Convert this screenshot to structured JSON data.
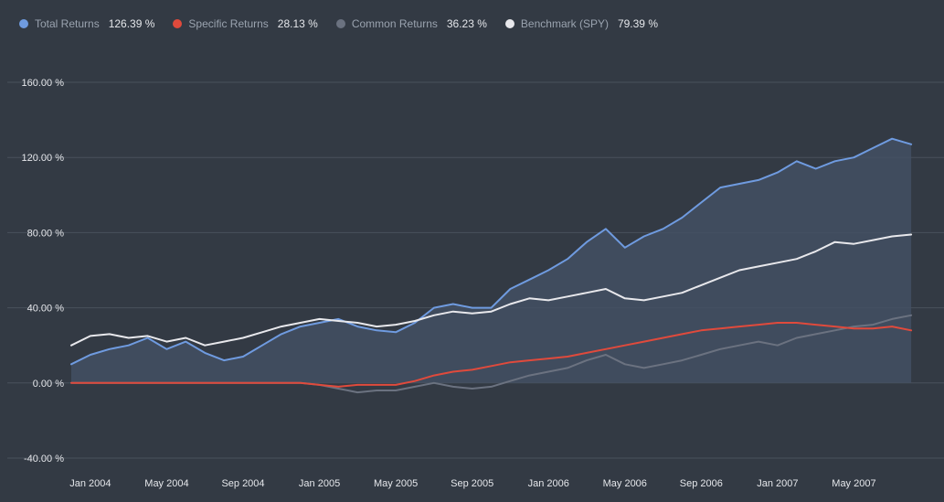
{
  "legend": [
    {
      "name": "Total Returns",
      "value": "126.39 %",
      "color": "#6f9be0"
    },
    {
      "name": "Specific Returns",
      "value": "28.13 %",
      "color": "#e04a3c"
    },
    {
      "name": "Common Returns",
      "value": "36.23 %",
      "color": "#6b7280"
    },
    {
      "name": "Benchmark (SPY)",
      "value": "79.39 %",
      "color": "#e8e8ec"
    }
  ],
  "chart_data": {
    "type": "line",
    "title": "",
    "xlabel": "",
    "ylabel": "",
    "ylim": [
      -40,
      160
    ],
    "xlim": [
      "2003-12",
      "2007-09"
    ],
    "grid": "horizontal",
    "legend_position": "top-left",
    "y_ticks": [
      -40,
      0,
      40,
      80,
      120,
      160
    ],
    "y_tick_labels": [
      "-40.00 %",
      "0.00 %",
      "40.00 %",
      "80.00 %",
      "120.00 %",
      "160.00 %"
    ],
    "x_tick_labels": [
      "Jan 2004",
      "May 2004",
      "Sep 2004",
      "Jan 2005",
      "May 2005",
      "Sep 2005",
      "Jan 2006",
      "May 2006",
      "Sep 2006",
      "Jan 2007",
      "May 2007"
    ],
    "x_ticks": [
      "2004-01",
      "2004-05",
      "2004-09",
      "2005-01",
      "2005-05",
      "2005-09",
      "2006-01",
      "2006-05",
      "2006-09",
      "2007-01",
      "2007-05"
    ],
    "series": [
      {
        "name": "Total Returns",
        "color": "#6f9be0",
        "area": true,
        "x": [
          "2003-12",
          "2004-01",
          "2004-02",
          "2004-03",
          "2004-04",
          "2004-05",
          "2004-06",
          "2004-07",
          "2004-08",
          "2004-09",
          "2004-10",
          "2004-11",
          "2004-12",
          "2005-01",
          "2005-02",
          "2005-03",
          "2005-04",
          "2005-05",
          "2005-06",
          "2005-07",
          "2005-08",
          "2005-09",
          "2005-10",
          "2005-11",
          "2005-12",
          "2006-01",
          "2006-02",
          "2006-03",
          "2006-04",
          "2006-05",
          "2006-06",
          "2006-07",
          "2006-08",
          "2006-09",
          "2006-10",
          "2006-11",
          "2006-12",
          "2007-01",
          "2007-02",
          "2007-03",
          "2007-04",
          "2007-05",
          "2007-06",
          "2007-07",
          "2007-08"
        ],
        "values": [
          10,
          15,
          18,
          20,
          24,
          18,
          22,
          16,
          12,
          14,
          20,
          26,
          30,
          32,
          34,
          30,
          28,
          27,
          32,
          40,
          42,
          40,
          40,
          50,
          55,
          60,
          66,
          75,
          82,
          72,
          78,
          82,
          88,
          96,
          104,
          106,
          108,
          112,
          118,
          114,
          118,
          120,
          125,
          130,
          127
        ]
      },
      {
        "name": "Specific Returns",
        "color": "#e04a3c",
        "x": [
          "2003-12",
          "2004-01",
          "2004-02",
          "2004-03",
          "2004-04",
          "2004-05",
          "2004-06",
          "2004-07",
          "2004-08",
          "2004-09",
          "2004-10",
          "2004-11",
          "2004-12",
          "2005-01",
          "2005-02",
          "2005-03",
          "2005-04",
          "2005-05",
          "2005-06",
          "2005-07",
          "2005-08",
          "2005-09",
          "2005-10",
          "2005-11",
          "2005-12",
          "2006-01",
          "2006-02",
          "2006-03",
          "2006-04",
          "2006-05",
          "2006-06",
          "2006-07",
          "2006-08",
          "2006-09",
          "2006-10",
          "2006-11",
          "2006-12",
          "2007-01",
          "2007-02",
          "2007-03",
          "2007-04",
          "2007-05",
          "2007-06",
          "2007-07",
          "2007-08"
        ],
        "values": [
          0,
          0,
          0,
          0,
          0,
          0,
          0,
          0,
          0,
          0,
          0,
          0,
          0,
          -1,
          -2,
          -1,
          -1,
          -1,
          1,
          4,
          6,
          7,
          9,
          11,
          12,
          13,
          14,
          16,
          18,
          20,
          22,
          24,
          26,
          28,
          29,
          30,
          31,
          32,
          32,
          31,
          30,
          29,
          29,
          30,
          28
        ]
      },
      {
        "name": "Common Returns",
        "color": "#6b7280",
        "x": [
          "2003-12",
          "2004-01",
          "2004-02",
          "2004-03",
          "2004-04",
          "2004-05",
          "2004-06",
          "2004-07",
          "2004-08",
          "2004-09",
          "2004-10",
          "2004-11",
          "2004-12",
          "2005-01",
          "2005-02",
          "2005-03",
          "2005-04",
          "2005-05",
          "2005-06",
          "2005-07",
          "2005-08",
          "2005-09",
          "2005-10",
          "2005-11",
          "2005-12",
          "2006-01",
          "2006-02",
          "2006-03",
          "2006-04",
          "2006-05",
          "2006-06",
          "2006-07",
          "2006-08",
          "2006-09",
          "2006-10",
          "2006-11",
          "2006-12",
          "2007-01",
          "2007-02",
          "2007-03",
          "2007-04",
          "2007-05",
          "2007-06",
          "2007-07",
          "2007-08"
        ],
        "values": [
          0,
          0,
          0,
          0,
          0,
          0,
          0,
          0,
          0,
          0,
          0,
          0,
          0,
          -1,
          -3,
          -5,
          -4,
          -4,
          -2,
          0,
          -2,
          -3,
          -2,
          1,
          4,
          6,
          8,
          12,
          15,
          10,
          8,
          10,
          12,
          15,
          18,
          20,
          22,
          20,
          24,
          26,
          28,
          30,
          31,
          34,
          36
        ]
      },
      {
        "name": "Benchmark (SPY)",
        "color": "#e8e8ec",
        "x": [
          "2003-12",
          "2004-01",
          "2004-02",
          "2004-03",
          "2004-04",
          "2004-05",
          "2004-06",
          "2004-07",
          "2004-08",
          "2004-09",
          "2004-10",
          "2004-11",
          "2004-12",
          "2005-01",
          "2005-02",
          "2005-03",
          "2005-04",
          "2005-05",
          "2005-06",
          "2005-07",
          "2005-08",
          "2005-09",
          "2005-10",
          "2005-11",
          "2005-12",
          "2006-01",
          "2006-02",
          "2006-03",
          "2006-04",
          "2006-05",
          "2006-06",
          "2006-07",
          "2006-08",
          "2006-09",
          "2006-10",
          "2006-11",
          "2006-12",
          "2007-01",
          "2007-02",
          "2007-03",
          "2007-04",
          "2007-05",
          "2007-06",
          "2007-07",
          "2007-08"
        ],
        "values": [
          20,
          25,
          26,
          24,
          25,
          22,
          24,
          20,
          22,
          24,
          27,
          30,
          32,
          34,
          33,
          32,
          30,
          31,
          33,
          36,
          38,
          37,
          38,
          42,
          45,
          44,
          46,
          48,
          50,
          45,
          44,
          46,
          48,
          52,
          56,
          60,
          62,
          64,
          66,
          70,
          75,
          74,
          76,
          78,
          79
        ]
      }
    ]
  }
}
